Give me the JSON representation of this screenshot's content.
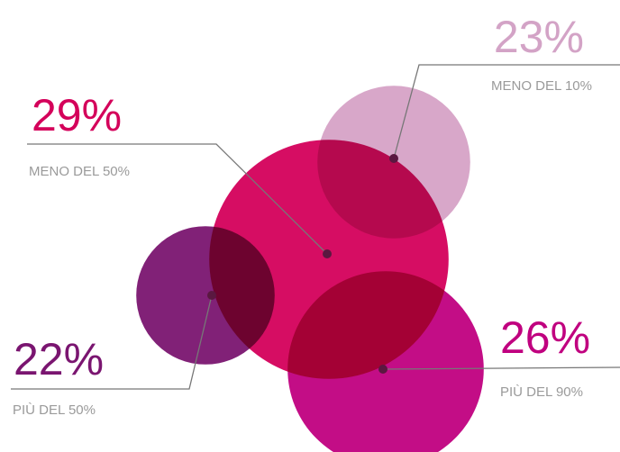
{
  "chart_data": {
    "type": "bubble",
    "categories": [
      "MENO DEL 50%",
      "MENO DEL 10%",
      "PIÙ DEL 50%",
      "PIÙ DEL 90%"
    ],
    "values": [
      29,
      23,
      22,
      26
    ],
    "value_labels": [
      "29%",
      "23%",
      "22%",
      "26%"
    ],
    "colors": [
      "#d4005a",
      "#d8a7c9",
      "#7a1570",
      "#c0007f"
    ]
  }
}
